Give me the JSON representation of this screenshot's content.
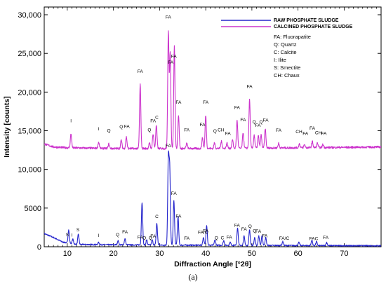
{
  "chart_data": {
    "type": "line",
    "xlabel": "Diffraction Angle [°2θ]",
    "ylabel": "Intensity [counts]",
    "xlim": [
      5,
      78
    ],
    "ylim": [
      0,
      31000
    ],
    "x_ticks": [
      10,
      20,
      30,
      40,
      50,
      60,
      70
    ],
    "y_ticks": [
      0,
      5000,
      10000,
      15000,
      20000,
      25000,
      30000
    ],
    "y_tick_labels": [
      "0",
      "5000",
      "10,000",
      "15,000",
      "20,000",
      "25,000",
      "30,000"
    ],
    "legend_position": "top-right",
    "series": [
      {
        "name": "RAW PHOSPHATE SLUDGE",
        "color": "#2626cc",
        "baseline": [
          [
            5,
            1700
          ],
          [
            7,
            1200
          ],
          [
            9,
            600
          ],
          [
            12,
            300
          ],
          [
            20,
            250
          ],
          [
            30,
            220
          ],
          [
            40,
            200
          ],
          [
            50,
            180
          ],
          [
            60,
            160
          ],
          [
            70,
            140
          ],
          [
            78,
            130
          ]
        ],
        "peaks": [
          [
            10.3,
            1700
          ],
          [
            11.2,
            600
          ],
          [
            12.4,
            1300
          ],
          [
            16.8,
            300
          ],
          [
            21.0,
            550
          ],
          [
            22.5,
            800
          ],
          [
            26.2,
            5500
          ],
          [
            27.2,
            650
          ],
          [
            28.4,
            650
          ],
          [
            29.4,
            2800
          ],
          [
            31.9,
            11000
          ],
          [
            32.2,
            9500
          ],
          [
            33.1,
            5800
          ],
          [
            34.0,
            3700
          ],
          [
            39.5,
            1000
          ],
          [
            40.2,
            2600
          ],
          [
            42.0,
            700
          ],
          [
            43.9,
            600
          ],
          [
            45.3,
            400
          ],
          [
            46.9,
            2200
          ],
          [
            48.3,
            1200
          ],
          [
            49.5,
            2000
          ],
          [
            50.6,
            1000
          ],
          [
            51.5,
            1200
          ],
          [
            52.2,
            1200
          ],
          [
            53.0,
            1000
          ],
          [
            56.7,
            500
          ],
          [
            60.2,
            400
          ],
          [
            63.0,
            700
          ],
          [
            64.0,
            500
          ],
          [
            66.2,
            400
          ]
        ]
      },
      {
        "name": "CALCINED PHOSPHATE SLUDGE",
        "color": "#cc33cc",
        "baseline": [
          [
            5,
            13300
          ],
          [
            7,
            12900
          ],
          [
            10,
            12800
          ],
          [
            20,
            12700
          ],
          [
            30,
            12700
          ],
          [
            40,
            12700
          ],
          [
            50,
            12750
          ],
          [
            60,
            12800
          ],
          [
            70,
            12850
          ],
          [
            78,
            12900
          ]
        ],
        "peaks": [
          [
            10.8,
            1800
          ],
          [
            16.8,
            800
          ],
          [
            19.0,
            600
          ],
          [
            21.7,
            1100
          ],
          [
            22.8,
            1500
          ],
          [
            25.8,
            8300
          ],
          [
            27.8,
            700
          ],
          [
            28.6,
            1900
          ],
          [
            29.3,
            3000
          ],
          [
            31.9,
            15100
          ],
          [
            32.3,
            12200
          ],
          [
            33.2,
            13200
          ],
          [
            34.1,
            4300
          ],
          [
            35.9,
            700
          ],
          [
            39.3,
            1400
          ],
          [
            40.0,
            4300
          ],
          [
            41.9,
            700
          ],
          [
            43.4,
            900
          ],
          [
            44.6,
            700
          ],
          [
            45.8,
            1100
          ],
          [
            46.8,
            3600
          ],
          [
            48.1,
            2000
          ],
          [
            49.5,
            6300
          ],
          [
            50.5,
            1700
          ],
          [
            51.4,
            1600
          ],
          [
            52.0,
            1700
          ],
          [
            52.9,
            2500
          ],
          [
            55.8,
            600
          ],
          [
            60.3,
            500
          ],
          [
            61.4,
            400
          ],
          [
            63.1,
            800
          ],
          [
            64.2,
            600
          ],
          [
            65.4,
            400
          ]
        ]
      }
    ],
    "annotations_calcined": [
      {
        "x": 10.8,
        "label": "I"
      },
      {
        "x": 16.8,
        "label": "I"
      },
      {
        "x": 19.0,
        "label": "Q"
      },
      {
        "x": 21.7,
        "label": "Q"
      },
      {
        "x": 22.9,
        "label": "FA"
      },
      {
        "x": 25.8,
        "label": "FA"
      },
      {
        "x": 27.8,
        "label": "Q"
      },
      {
        "x": 28.6,
        "label": "FA"
      },
      {
        "x": 29.4,
        "label": "C"
      },
      {
        "x": 31.9,
        "label": "FA"
      },
      {
        "x": 32.4,
        "label": "FA"
      },
      {
        "x": 33.1,
        "label": "FA"
      },
      {
        "x": 34.1,
        "label": "FA"
      },
      {
        "x": 35.9,
        "label": "FA"
      },
      {
        "x": 39.3,
        "label": "FA"
      },
      {
        "x": 40.0,
        "label": "FA"
      },
      {
        "x": 42.0,
        "label": "Q"
      },
      {
        "x": 43.3,
        "label": "CH"
      },
      {
        "x": 44.8,
        "label": "FA"
      },
      {
        "x": 46.8,
        "label": "FA"
      },
      {
        "x": 48.1,
        "label": "FA"
      },
      {
        "x": 49.5,
        "label": "FA"
      },
      {
        "x": 50.5,
        "label": "Q"
      },
      {
        "x": 51.3,
        "label": "FA"
      },
      {
        "x": 52.0,
        "label": "Q"
      },
      {
        "x": 53.0,
        "label": "FA"
      },
      {
        "x": 55.8,
        "label": "FA"
      },
      {
        "x": 60.2,
        "label": "CH"
      },
      {
        "x": 61.6,
        "label": "FA"
      },
      {
        "x": 63.1,
        "label": "FA"
      },
      {
        "x": 64.4,
        "label": "CH"
      },
      {
        "x": 65.6,
        "label": "FA"
      }
    ],
    "annotations_raw": [
      {
        "x": 10.0,
        "label": "S"
      },
      {
        "x": 11.0,
        "label": "I"
      },
      {
        "x": 12.3,
        "label": "S"
      },
      {
        "x": 16.8,
        "label": "I"
      },
      {
        "x": 20.9,
        "label": "Q"
      },
      {
        "x": 22.5,
        "label": "FA"
      },
      {
        "x": 25.8,
        "label": "FA"
      },
      {
        "x": 26.7,
        "label": "Q"
      },
      {
        "x": 28.0,
        "label": "Q"
      },
      {
        "x": 28.6,
        "label": "FA"
      },
      {
        "x": 29.4,
        "label": "C"
      },
      {
        "x": 31.9,
        "label": "FA"
      },
      {
        "x": 33.1,
        "label": "FA"
      },
      {
        "x": 34.1,
        "label": "FA"
      },
      {
        "x": 35.9,
        "label": "FA"
      },
      {
        "x": 39.4,
        "label": "FA/C"
      },
      {
        "x": 40.0,
        "label": "FA"
      },
      {
        "x": 42.3,
        "label": "Q"
      },
      {
        "x": 43.6,
        "label": "C"
      },
      {
        "x": 45.1,
        "label": "FA"
      },
      {
        "x": 46.8,
        "label": "FA"
      },
      {
        "x": 48.3,
        "label": "FA"
      },
      {
        "x": 49.6,
        "label": "Q"
      },
      {
        "x": 50.6,
        "label": "Q"
      },
      {
        "x": 51.4,
        "label": "FA"
      },
      {
        "x": 52.8,
        "label": "FA"
      },
      {
        "x": 57.0,
        "label": "FA/C"
      },
      {
        "x": 63.4,
        "label": "FAC"
      },
      {
        "x": 66.0,
        "label": "FA"
      }
    ],
    "calcined_label_offset": 1500,
    "raw_label_offset": 700
  },
  "legend": {
    "series": [
      "RAW PHOSPHATE SLUDGE",
      "CALCINED PHOSPHATE SLUDGE"
    ],
    "phases": [
      "FA: Fluorapatite",
      "Q: Quartz",
      "C: Calcite",
      "I: Ilite",
      "S: Smectite",
      "CH: Chaux"
    ]
  },
  "caption": "(a)"
}
